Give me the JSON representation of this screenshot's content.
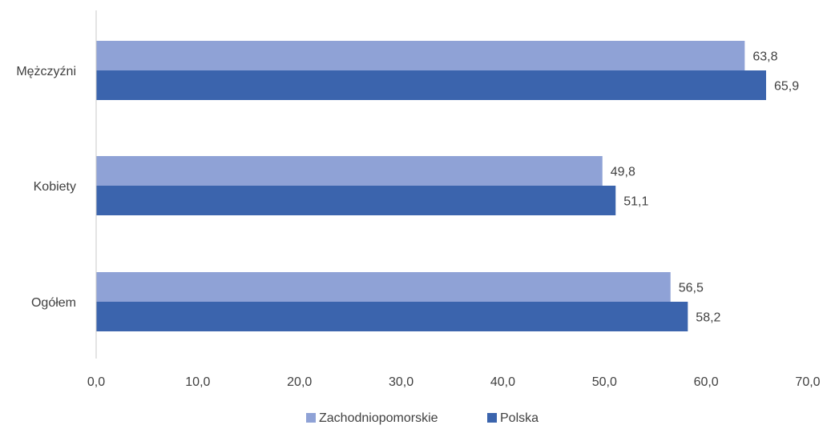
{
  "chart_data": {
    "type": "bar",
    "orientation": "horizontal",
    "categories": [
      "Mężczyźni",
      "Kobiety",
      "Ogółem"
    ],
    "series": [
      {
        "name": "Zachodniopomorskie",
        "values": [
          63.8,
          49.8,
          56.5
        ],
        "labels": [
          "63,8",
          "49,8",
          "56,5"
        ]
      },
      {
        "name": "Polska",
        "values": [
          65.9,
          51.1,
          58.2
        ],
        "labels": [
          "65,9",
          "51,1",
          "58,2"
        ]
      }
    ],
    "xlim": [
      0,
      70
    ],
    "xticks": [
      "0,0",
      "10,0",
      "20,0",
      "30,0",
      "40,0",
      "50,0",
      "60,0",
      "70,0"
    ],
    "grid": false,
    "legend_position": "bottom",
    "colors": {
      "Zachodniopomorskie": "#8FA2D6",
      "Polska": "#3B64AD",
      "axis": "#C8C8C8",
      "text": "#404040"
    }
  }
}
